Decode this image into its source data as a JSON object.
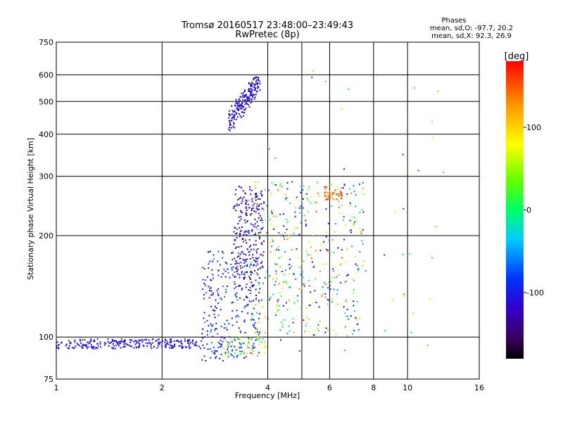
{
  "title": {
    "line1": "Tromsø 20160517 23:48:00–23:49:43",
    "line2": "RwPretec (8p)"
  },
  "phases": {
    "heading": "Phases",
    "line_o": "mean, sd,O: -97.7, 20.2",
    "line_x": "mean, sd,X:  92.3, 26.9"
  },
  "colorbar": {
    "unit_label": "[deg]",
    "ticks": [
      {
        "value": 100,
        "label": "100"
      },
      {
        "value": 0,
        "label": "0"
      },
      {
        "value": -100,
        "label": "-100"
      }
    ],
    "range": [
      -180,
      180
    ],
    "colormap": "rainbow (black-purple-blue-cyan-green-yellow-red)"
  },
  "chart_data": {
    "type": "scatter",
    "title": "Tromsø 20160517 23:48:00–23:49:43",
    "subtitle": "RwPretec (8p)",
    "xlabel": "Frequency [MHz]",
    "ylabel": "Stationary phase Virtual Height [km]",
    "xscale": "log",
    "yscale": "log",
    "xlim": [
      1,
      16
    ],
    "ylim": [
      75,
      750
    ],
    "x_ticks": [
      1,
      2,
      4,
      6,
      8,
      10,
      16
    ],
    "x_ticklabels": [
      "1",
      "2",
      "4",
      "6",
      "8",
      "10",
      "16"
    ],
    "x_gridlines": [
      2,
      4,
      5,
      6,
      8,
      10
    ],
    "y_ticks": [
      75,
      100,
      200,
      300,
      400,
      500,
      600,
      750
    ],
    "y_ticklabels": [
      "75",
      "100",
      "200",
      "300",
      "400",
      "500",
      "600",
      "750"
    ],
    "y_gridlines": [
      100,
      200,
      300,
      400,
      500,
      600
    ],
    "grid": true,
    "color_variable": "phase [deg]",
    "clusters": [
      {
        "x": [
          1.0,
          2.6
        ],
        "y": [
          92,
          99
        ],
        "phase": [
          -120,
          -95
        ],
        "count": 260,
        "trend": "flat"
      },
      {
        "x": [
          2.6,
          3.8
        ],
        "y": [
          85,
          180
        ],
        "phase": [
          -140,
          -60
        ],
        "count": 300
      },
      {
        "x": [
          3.2,
          3.9
        ],
        "y": [
          150,
          280
        ],
        "phase": [
          -150,
          -100
        ],
        "count": 220
      },
      {
        "x": [
          3.1,
          3.8
        ],
        "y": [
          410,
          610
        ],
        "phase": [
          -130,
          -95
        ],
        "count": 200,
        "trend": "rising"
      },
      {
        "x": [
          3.5,
          7.5
        ],
        "y": [
          100,
          290
        ],
        "phase": [
          -150,
          160
        ],
        "count": 420
      },
      {
        "x": [
          3.0,
          4.0
        ],
        "y": [
          88,
          100
        ],
        "phase": [
          -40,
          170
        ],
        "count": 60
      },
      {
        "x": [
          5.8,
          6.5
        ],
        "y": [
          255,
          280
        ],
        "phase": [
          110,
          170
        ],
        "count": 40
      },
      {
        "x": [
          4.0,
          13.0
        ],
        "y": [
          90,
          620
        ],
        "phase": [
          -120,
          160
        ],
        "count": 50
      }
    ]
  }
}
